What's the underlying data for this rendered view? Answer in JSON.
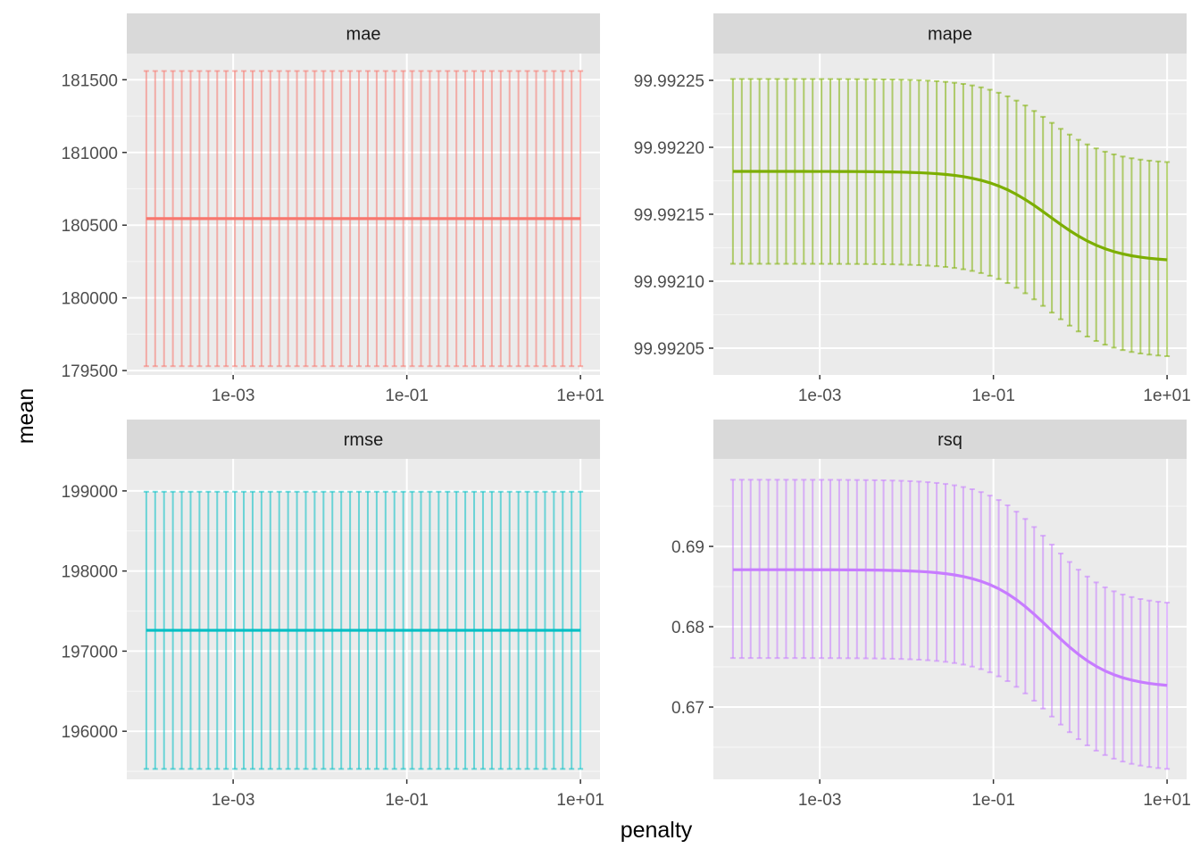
{
  "chart_data": {
    "type": "line",
    "xlabel": "penalty",
    "ylabel": "mean",
    "x_scale": "log10",
    "x_ticks": [
      0.001,
      0.1,
      10
    ],
    "x_tick_labels": [
      "1e-03",
      "1e-01",
      "1e+01"
    ],
    "x_range": [
      0.0001,
      10
    ],
    "grid": true,
    "legend": "none",
    "panels": [
      {
        "name": "mae",
        "color": "#F8766D",
        "ylim": [
          179470,
          181680
        ],
        "y_ticks": [
          179500,
          180000,
          180500,
          181000,
          181500
        ],
        "y_tick_labels": [
          "179500",
          "180000",
          "180500",
          "181000",
          "181500"
        ],
        "curve": "flat",
        "y_start": 180545,
        "y_end": 180545,
        "err_low_start": 179530,
        "err_low_end": 179530,
        "err_high_start": 181560,
        "err_high_end": 181560
      },
      {
        "name": "mape",
        "color": "#7CAE00",
        "ylim": [
          99.99203,
          99.99227
        ],
        "y_ticks": [
          99.99205,
          99.9921,
          99.99215,
          99.9922,
          99.99225
        ],
        "y_tick_labels": [
          "99.99205",
          "99.99210",
          "99.99215",
          "99.99220",
          "99.99225"
        ],
        "curve": "sigmoid",
        "y_start": 99.992182,
        "y_end": 99.992116,
        "err_low_start": 99.992113,
        "err_low_end": 99.992044,
        "err_high_start": 99.992251,
        "err_high_end": 99.992189
      },
      {
        "name": "rmse",
        "color": "#00BFC4",
        "ylim": [
          195400,
          199400
        ],
        "y_ticks": [
          196000,
          197000,
          198000,
          199000
        ],
        "y_tick_labels": [
          "196000",
          "197000",
          "198000",
          "199000"
        ],
        "curve": "flat",
        "y_start": 197260,
        "y_end": 197260,
        "err_low_start": 195530,
        "err_low_end": 195530,
        "err_high_start": 198990,
        "err_high_end": 198990
      },
      {
        "name": "rsq",
        "color": "#C77CFF",
        "ylim": [
          0.661,
          0.7009
        ],
        "y_ticks": [
          0.67,
          0.68,
          0.69
        ],
        "y_tick_labels": [
          "0.67",
          "0.68",
          "0.69"
        ],
        "curve": "sigmoid",
        "y_start": 0.6871,
        "y_end": 0.6727,
        "err_low_start": 0.6761,
        "err_low_end": 0.6623,
        "err_high_start": 0.6983,
        "err_high_end": 0.683
      }
    ]
  }
}
